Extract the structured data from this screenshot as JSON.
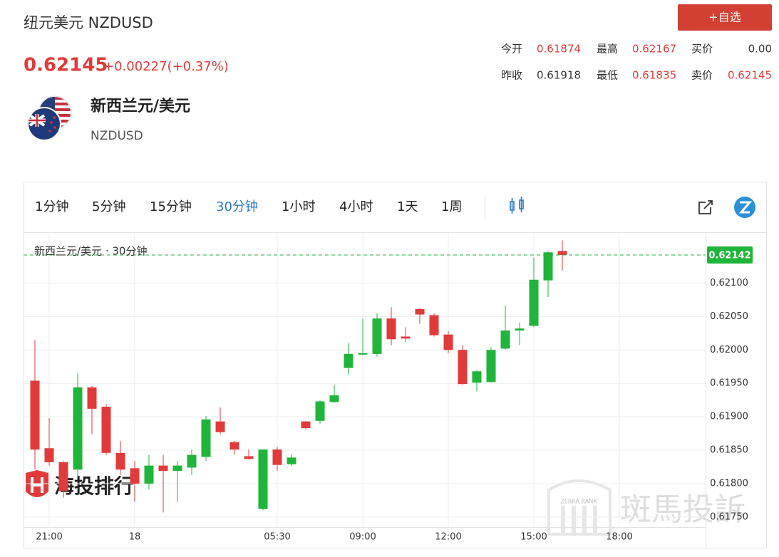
{
  "header": {
    "title": "纽元美元 NZDUSD",
    "price": "0.62145",
    "change": "+0.00227(+0.37%)",
    "button": "+自选",
    "stats": [
      [
        {
          "label": "今开",
          "value": "0.61874"
        },
        {
          "label": "最高",
          "value": "0.62167"
        },
        {
          "label": "买价",
          "value": "0.00"
        }
      ],
      [
        {
          "label": "昨收",
          "value": "0.61918"
        },
        {
          "label": "最低",
          "value": "0.61835"
        },
        {
          "label": "卖价",
          "value": "0.62145"
        }
      ]
    ],
    "name": "新西兰元/美元",
    "code": "NZDUSD"
  },
  "toolbar": {
    "tabs": [
      "1分钟",
      "5分钟",
      "15分钟",
      "30分钟",
      "1小时",
      "4小时",
      "1天",
      "1周"
    ],
    "active": 3
  },
  "watermark": {
    "left": "海投排行",
    "right": "斑馬投訴",
    "right_small": "ZEBRA RANK"
  },
  "chart_data": {
    "type": "candlestick",
    "title": "新西兰元/美元 · 30分钟",
    "categories": [
      null,
      "21:00",
      null,
      null,
      null,
      null,
      null,
      "18",
      null,
      null,
      null,
      null,
      null,
      null,
      null,
      null,
      null,
      "05:30",
      null,
      null,
      null,
      null,
      null,
      "09:00",
      null,
      null,
      null,
      null,
      null,
      "12:00",
      null,
      null,
      null,
      null,
      null,
      "15:00",
      null,
      null,
      null,
      null,
      null,
      "18:00"
    ],
    "open": [
      0.61954,
      0.61853,
      0.61832,
      0.61821,
      0.61944,
      0.61915,
      0.61846,
      0.61823,
      0.618,
      0.61827,
      0.61819,
      0.61824,
      0.6184,
      0.61893,
      0.61862,
      0.61841,
      0.61762,
      0.61851,
      0.61829,
      0.61893,
      0.61894,
      0.61922,
      0.61973,
      0.61993,
      0.61994,
      0.62047,
      0.6202,
      0.62061,
      0.62052,
      0.62023,
      0.62,
      0.61951,
      0.61952,
      0.62002,
      0.62029,
      0.62036,
      0.62104,
      0.62148,
      null,
      null,
      null,
      null
    ],
    "high": [
      0.62015,
      0.61898,
      0.61834,
      0.61965,
      0.61946,
      0.61919,
      0.61864,
      0.61834,
      0.61843,
      0.61843,
      0.61834,
      0.61851,
      0.61901,
      0.61914,
      0.61864,
      0.61851,
      0.61851,
      0.61855,
      0.61843,
      0.61894,
      0.61925,
      0.61948,
      0.6201,
      0.62047,
      0.62055,
      0.62064,
      0.62034,
      0.62063,
      0.62055,
      0.62028,
      0.62007,
      0.6197,
      0.62004,
      0.62066,
      0.62041,
      0.62138,
      0.62148,
      0.62164,
      null,
      null,
      null,
      null
    ],
    "low": [
      0.61821,
      0.61827,
      0.61779,
      0.61811,
      0.61874,
      0.61843,
      0.61813,
      0.61773,
      0.61791,
      0.61757,
      0.61773,
      0.61813,
      0.61834,
      0.61874,
      0.61843,
      0.61836,
      0.6176,
      0.61819,
      0.61827,
      0.61881,
      0.61889,
      0.61921,
      0.61963,
      0.61992,
      0.6199,
      0.62007,
      0.62012,
      0.62039,
      0.6202,
      0.61995,
      0.61948,
      0.61938,
      0.61951,
      0.62,
      0.62007,
      0.62034,
      0.62079,
      0.62119,
      null,
      null,
      null,
      null
    ],
    "close": [
      0.61851,
      0.61832,
      0.61789,
      0.61944,
      0.61912,
      0.61846,
      0.61821,
      0.618,
      0.61827,
      0.61819,
      0.61827,
      0.61843,
      0.61896,
      0.61877,
      0.61851,
      0.61837,
      0.61851,
      0.61828,
      0.61839,
      0.61883,
      0.61923,
      0.61932,
      0.61994,
      0.61995,
      0.62047,
      0.62016,
      0.62017,
      0.62053,
      0.62022,
      0.62,
      0.61949,
      0.61968,
      0.62,
      0.62029,
      0.62032,
      0.62105,
      0.62146,
      0.62142,
      null,
      null,
      null,
      null
    ],
    "up_color": "#1fb53a",
    "down_color": "#e03a3a",
    "last_value": 0.62142,
    "last_color": "#1fb53a",
    "ylim": [
      0.61735,
      0.62175
    ],
    "yticks": [
      {
        "value": 0.6175,
        "label": "0.61750"
      },
      {
        "value": 0.618,
        "label": "0.61800"
      },
      {
        "value": 0.6185,
        "label": "0.61850"
      },
      {
        "value": 0.619,
        "label": "0.61900"
      },
      {
        "value": 0.6195,
        "label": "0.61950"
      },
      {
        "value": 0.62,
        "label": "0.62000"
      },
      {
        "value": 0.6205,
        "label": "0.62050"
      },
      {
        "value": 0.621,
        "label": "0.62100"
      }
    ],
    "grid": true
  }
}
